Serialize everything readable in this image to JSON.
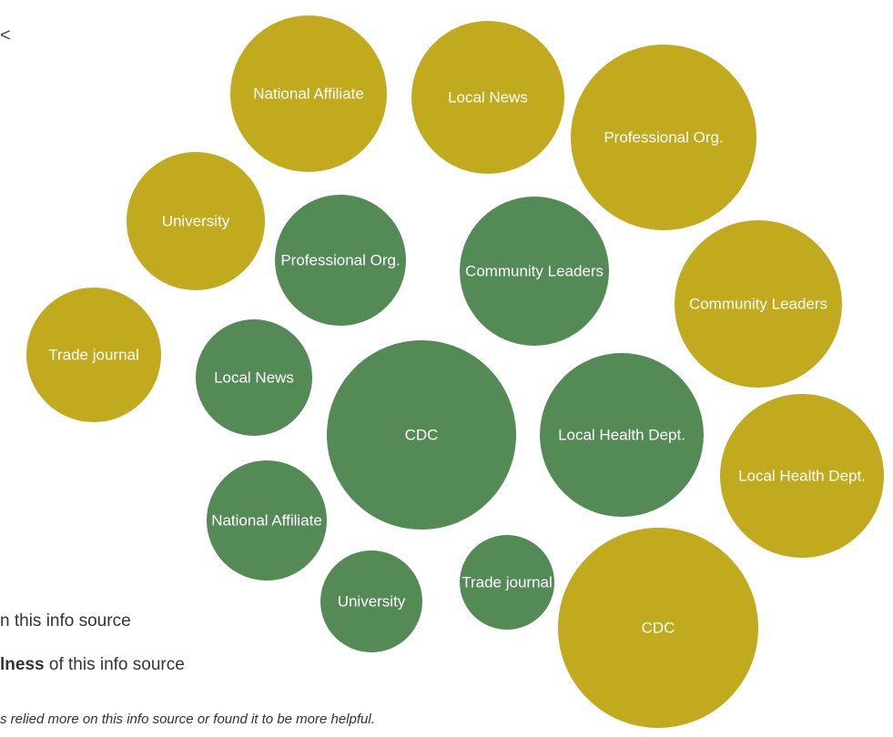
{
  "colors": {
    "reliance": "#c1aa1e",
    "helpfulness": "#548a55",
    "label": "#ffffff"
  },
  "legend": {
    "reliance_text": "n this info source",
    "helpfulness_bold": "lness",
    "helpfulness_rest": " of this info source"
  },
  "footnote": "s relied more on this info source or found it to be more helpful.",
  "corner_mark": "<",
  "chart_data": {
    "type": "bubble",
    "title": "",
    "series": [
      {
        "color_key": "reliance",
        "points": [
          {
            "label": "National Affiliate",
            "size": 43
          },
          {
            "label": "Local News",
            "size": 42
          },
          {
            "label": "Professional Org.",
            "size": 51
          },
          {
            "label": "University",
            "size": 38
          },
          {
            "label": "Community Leaders",
            "size": 46
          },
          {
            "label": "Trade journal",
            "size": 37
          },
          {
            "label": "Local Health Dept.",
            "size": 45
          },
          {
            "label": "CDC",
            "size": 55
          }
        ]
      },
      {
        "color_key": "helpfulness",
        "points": [
          {
            "label": "Professional Org.",
            "size": 36
          },
          {
            "label": "Community Leaders",
            "size": 41
          },
          {
            "label": "Local News",
            "size": 32
          },
          {
            "label": "CDC",
            "size": 52
          },
          {
            "label": "Local Health Dept.",
            "size": 45
          },
          {
            "label": "National Affiliate",
            "size": 33
          },
          {
            "label": "University",
            "size": 28
          },
          {
            "label": "Trade journal",
            "size": 26
          }
        ]
      }
    ]
  }
}
